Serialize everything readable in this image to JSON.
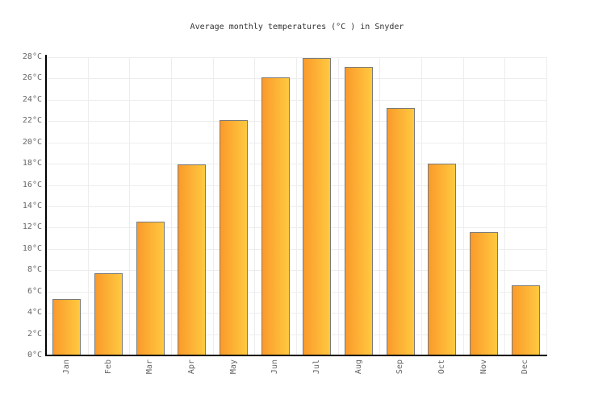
{
  "chart_data": {
    "type": "bar",
    "title": "Average monthly temperatures (°C ) in Snyder",
    "categories": [
      "Jan",
      "Feb",
      "Mar",
      "Apr",
      "May",
      "Jun",
      "Jul",
      "Aug",
      "Sep",
      "Oct",
      "Nov",
      "Dec"
    ],
    "values": [
      5.3,
      7.7,
      12.6,
      17.9,
      22.1,
      26.1,
      27.9,
      27.1,
      23.2,
      18.0,
      11.6,
      6.6
    ],
    "xlabel": "",
    "ylabel": "",
    "ylim": [
      0,
      28
    ],
    "ytick_step": 2,
    "ytick_labels": [
      "0°C",
      "2°C",
      "4°C",
      "6°C",
      "8°C",
      "10°C",
      "12°C",
      "14°C",
      "16°C",
      "18°C",
      "20°C",
      "22°C",
      "24°C",
      "26°C",
      "28°C"
    ],
    "grid": true,
    "legend": false,
    "colors": {
      "bar_gradient_left": "#fa9a2b",
      "bar_gradient_right": "#ffc940",
      "bar_border": "#7a7a7a",
      "gridline": "#ededed",
      "axis": "#000000",
      "tick_text": "#666666",
      "title_text": "#333333",
      "background": "#ffffff"
    }
  }
}
